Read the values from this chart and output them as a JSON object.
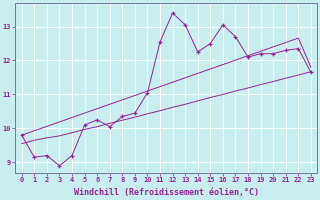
{
  "xlabel": "Windchill (Refroidissement éolien,°C)",
  "background_color": "#c8eef0",
  "grid_color": "#aadddd",
  "line_color": "#992299",
  "x_values": [
    0,
    1,
    2,
    3,
    4,
    5,
    6,
    7,
    8,
    9,
    10,
    11,
    12,
    13,
    14,
    15,
    16,
    17,
    18,
    19,
    20,
    21,
    22,
    23
  ],
  "y_main": [
    9.8,
    9.15,
    9.2,
    8.9,
    9.2,
    10.1,
    10.25,
    10.05,
    10.35,
    10.45,
    11.05,
    12.55,
    13.4,
    13.05,
    12.25,
    12.5,
    13.05,
    12.7,
    12.1,
    12.2,
    12.2,
    12.3,
    12.35,
    11.65
  ],
  "y_linear_low": [
    9.55,
    9.65,
    9.72,
    9.78,
    9.87,
    9.97,
    10.05,
    10.15,
    10.24,
    10.33,
    10.43,
    10.52,
    10.62,
    10.71,
    10.81,
    10.91,
    11.0,
    11.1,
    11.19,
    11.29,
    11.38,
    11.48,
    11.57,
    11.67
  ],
  "y_linear_high": [
    9.8,
    9.93,
    10.06,
    10.19,
    10.32,
    10.45,
    10.58,
    10.71,
    10.84,
    10.97,
    11.1,
    11.23,
    11.36,
    11.49,
    11.62,
    11.75,
    11.88,
    12.01,
    12.14,
    12.27,
    12.4,
    12.53,
    12.66,
    11.8
  ],
  "xlim": [
    -0.5,
    23.5
  ],
  "ylim": [
    8.7,
    13.7
  ],
  "yticks": [
    9,
    10,
    11,
    12,
    13
  ],
  "xticks": [
    0,
    1,
    2,
    3,
    4,
    5,
    6,
    7,
    8,
    9,
    10,
    11,
    12,
    13,
    14,
    15,
    16,
    17,
    18,
    19,
    20,
    21,
    22,
    23
  ],
  "tick_fontsize": 5.0,
  "xlabel_fontsize": 6.0
}
